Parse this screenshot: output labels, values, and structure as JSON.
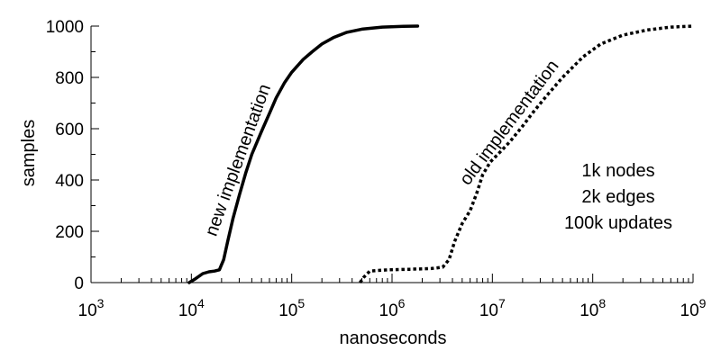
{
  "chart_data": {
    "type": "line",
    "title": "",
    "xlabel": "nanoseconds",
    "ylabel": "samples",
    "xscale": "log",
    "xlim": [
      1000,
      1000000000
    ],
    "ylim": [
      0,
      1000
    ],
    "grid": false,
    "x_ticks": [
      {
        "value": 1000,
        "base": "10",
        "exp": "3"
      },
      {
        "value": 10000,
        "base": "10",
        "exp": "4"
      },
      {
        "value": 100000,
        "base": "10",
        "exp": "5"
      },
      {
        "value": 1000000,
        "base": "10",
        "exp": "6"
      },
      {
        "value": 10000000,
        "base": "10",
        "exp": "7"
      },
      {
        "value": 100000000,
        "base": "10",
        "exp": "8"
      },
      {
        "value": 1000000000,
        "base": "10",
        "exp": "9"
      }
    ],
    "y_ticks": [
      {
        "value": 0,
        "label": "0"
      },
      {
        "value": 200,
        "label": "200"
      },
      {
        "value": 400,
        "label": "400"
      },
      {
        "value": 600,
        "label": "600"
      },
      {
        "value": 800,
        "label": "800"
      },
      {
        "value": 1000,
        "label": "1000"
      }
    ],
    "series": [
      {
        "label": "new implementation",
        "color": "#000000",
        "dash": "solid",
        "points": [
          [
            9500,
            0
          ],
          [
            11000,
            15
          ],
          [
            13000,
            35
          ],
          [
            15000,
            42
          ],
          [
            17000,
            45
          ],
          [
            19000,
            50
          ],
          [
            21000,
            90
          ],
          [
            23000,
            160
          ],
          [
            26000,
            250
          ],
          [
            30000,
            340
          ],
          [
            35000,
            430
          ],
          [
            40000,
            500
          ],
          [
            50000,
            590
          ],
          [
            60000,
            660
          ],
          [
            70000,
            720
          ],
          [
            85000,
            780
          ],
          [
            100000,
            820
          ],
          [
            130000,
            870
          ],
          [
            160000,
            900
          ],
          [
            200000,
            930
          ],
          [
            260000,
            955
          ],
          [
            350000,
            975
          ],
          [
            500000,
            988
          ],
          [
            800000,
            996
          ],
          [
            1300000,
            999
          ],
          [
            1800000,
            1000
          ]
        ]
      },
      {
        "label": "old implementation",
        "color": "#000000",
        "dash": "dotted",
        "points": [
          [
            480000,
            0
          ],
          [
            520000,
            20
          ],
          [
            600000,
            45
          ],
          [
            900000,
            50
          ],
          [
            1500000,
            52
          ],
          [
            2500000,
            55
          ],
          [
            3200000,
            60
          ],
          [
            3700000,
            90
          ],
          [
            4200000,
            160
          ],
          [
            5000000,
            230
          ],
          [
            6000000,
            280
          ],
          [
            7000000,
            350
          ],
          [
            8000000,
            420
          ],
          [
            9500000,
            470
          ],
          [
            12000000,
            510
          ],
          [
            15000000,
            550
          ],
          [
            20000000,
            610
          ],
          [
            25000000,
            660
          ],
          [
            35000000,
            730
          ],
          [
            50000000,
            800
          ],
          [
            80000000,
            880
          ],
          [
            120000000,
            930
          ],
          [
            200000000,
            965
          ],
          [
            350000000,
            985
          ],
          [
            600000000,
            996
          ],
          [
            1000000000,
            1000
          ]
        ]
      }
    ],
    "annotation_lines": [
      "1k nodes",
      "2k edges",
      "100k updates"
    ]
  }
}
